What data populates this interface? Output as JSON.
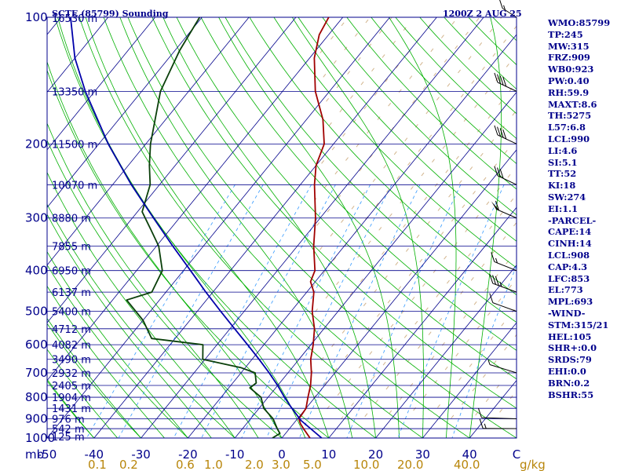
{
  "chart_data": {
    "type": "line",
    "title": "SCTE (85799) Sounding",
    "valid_time": "1200Z  2 AUG 25",
    "pressure_axis": {
      "label": "mb",
      "ticks": [
        "100",
        "200",
        "300",
        "400",
        "500",
        "600",
        "700",
        "800",
        "900",
        "1000"
      ],
      "range_mb": [
        100,
        1000
      ],
      "scale": "log"
    },
    "temperature_axis": {
      "range_c": [
        -50,
        50
      ],
      "ticks": [
        "-50",
        "-40",
        "-30",
        "-20",
        "-10",
        "0",
        "10",
        "20",
        "30",
        "40",
        "C"
      ]
    },
    "mixing_ratio_labels": [
      "0.1",
      "0.2",
      "0.6",
      "1.0",
      "2.0",
      "3.0",
      "5.0",
      "10.0",
      "20.0",
      "40.0",
      "g/kg"
    ],
    "height_labels": [
      "16530 m",
      "13350 m",
      "11500 m",
      "10070 m",
      "8880 m",
      "7855 m",
      "6950 m",
      "6137 m",
      "5400 m",
      "4712 m",
      "4082 m",
      "3490 m",
      "2932 m",
      "2405 m",
      "1904 m",
      "1431 m",
      "976 m",
      "542 m",
      "125 m"
    ],
    "height_levels_mb": [
      100,
      150,
      200,
      250,
      300,
      350,
      400,
      450,
      500,
      550,
      600,
      650,
      700,
      750,
      800,
      850,
      900,
      950,
      1000
    ],
    "series": [
      {
        "name": "temperature",
        "color": "#a00000",
        "points": [
          [
            1000,
            6.0
          ],
          [
            950,
            3.0
          ],
          [
            925,
            1.5
          ],
          [
            900,
            0.3
          ],
          [
            850,
            0.0
          ],
          [
            800,
            -1.5
          ],
          [
            750,
            -3.0
          ],
          [
            700,
            -5.0
          ],
          [
            650,
            -7.5
          ],
          [
            600,
            -9.5
          ],
          [
            550,
            -12.0
          ],
          [
            500,
            -15.5
          ],
          [
            450,
            -18.5
          ],
          [
            425,
            -21.0
          ],
          [
            400,
            -22.0
          ],
          [
            350,
            -26.5
          ],
          [
            300,
            -31.0
          ],
          [
            250,
            -37.0
          ],
          [
            225,
            -40.0
          ],
          [
            200,
            -42.0
          ],
          [
            175,
            -46.5
          ],
          [
            150,
            -53.0
          ],
          [
            125,
            -59.0
          ],
          [
            110,
            -62.0
          ],
          [
            100,
            -63.0
          ]
        ]
      },
      {
        "name": "dewpoint",
        "color": "#0a3f0a",
        "points": [
          [
            1000,
            -2.0
          ],
          [
            975,
            -1.2
          ],
          [
            950,
            -2.6
          ],
          [
            900,
            -5.2
          ],
          [
            850,
            -9.0
          ],
          [
            800,
            -11.5
          ],
          [
            760,
            -15.5
          ],
          [
            740,
            -15.0
          ],
          [
            700,
            -17.0
          ],
          [
            680,
            -21.0
          ],
          [
            650,
            -30.5
          ],
          [
            600,
            -33.0
          ],
          [
            580,
            -45.0
          ],
          [
            525,
            -50.0
          ],
          [
            470,
            -57.0
          ],
          [
            450,
            -53.0
          ],
          [
            400,
            -54.5
          ],
          [
            350,
            -59.5
          ],
          [
            320,
            -64.0
          ],
          [
            290,
            -69.0
          ],
          [
            250,
            -72.0
          ],
          [
            225,
            -75.5
          ],
          [
            200,
            -79.0
          ],
          [
            150,
            -86.0
          ],
          [
            120,
            -89.0
          ],
          [
            100,
            -90.5
          ]
        ]
      },
      {
        "name": "parcel",
        "color": "#0000aa",
        "points": [
          [
            1000,
            8.5
          ],
          [
            908,
            1.0
          ],
          [
            850,
            -3.0
          ],
          [
            800,
            -6.5
          ],
          [
            750,
            -10.0
          ],
          [
            700,
            -14.0
          ],
          [
            650,
            -18.5
          ],
          [
            600,
            -23.5
          ],
          [
            550,
            -29.0
          ],
          [
            500,
            -35.0
          ],
          [
            450,
            -41.5
          ],
          [
            400,
            -48.5
          ],
          [
            350,
            -56.5
          ],
          [
            300,
            -65.5
          ],
          [
            250,
            -76.0
          ],
          [
            200,
            -88.0
          ],
          [
            150,
            -102.0
          ],
          [
            125,
            -110.0
          ],
          [
            100,
            -118.0
          ]
        ]
      }
    ],
    "wind_barbs": [
      {
        "p": 950,
        "dir": 240,
        "spd": 15
      },
      {
        "p": 900,
        "dir": 250,
        "spd": 10
      },
      {
        "p": 700,
        "dir": 330,
        "spd": 5
      },
      {
        "p": 500,
        "dir": 340,
        "spd": 10
      },
      {
        "p": 450,
        "dir": 340,
        "spd": 35
      },
      {
        "p": 400,
        "dir": 345,
        "spd": 15
      },
      {
        "p": 300,
        "dir": 350,
        "spd": 60
      },
      {
        "p": 250,
        "dir": 355,
        "spd": 30
      },
      {
        "p": 200,
        "dir": 355,
        "spd": 40
      },
      {
        "p": 150,
        "dir": 355,
        "spd": 40
      },
      {
        "p": 100,
        "dir": 10,
        "spd": 15
      }
    ],
    "colors": {
      "frame": "#00008b",
      "isobar": "#00008b",
      "isotherm": "#00008b",
      "dry_adiabat": "#00b000",
      "moist_adiabat": "#00b000",
      "mixing_ratio": "#3399ff",
      "shading": "#d2b48c",
      "labels": "#00008b",
      "mixing_labels": "#b8860b"
    }
  },
  "indices": [
    "WMO:85799",
    "TP:245",
    "MW:315",
    "FRZ:909",
    "WB0:923",
    "PW:0.40",
    "RH:59.9",
    "MAXT:8.6",
    "TH:5275",
    "L57:6.8",
    "LCL:990",
    "LI:4.6",
    "SI:5.1",
    "TT:52",
    "KI:18",
    "SW:274",
    "EI:1.1",
    "-PARCEL-",
    "CAPE:14",
    "CINH:14",
    "LCL:908",
    "CAP:4.3",
    "LFC:853",
    "EL:773",
    "MPL:693",
    "-WIND-",
    "STM:315/21",
    "HEL:105",
    "SHR+:0.0",
    "SRDS:79",
    "EHI:0.0",
    "BRN:0.2",
    "BSHR:55"
  ]
}
